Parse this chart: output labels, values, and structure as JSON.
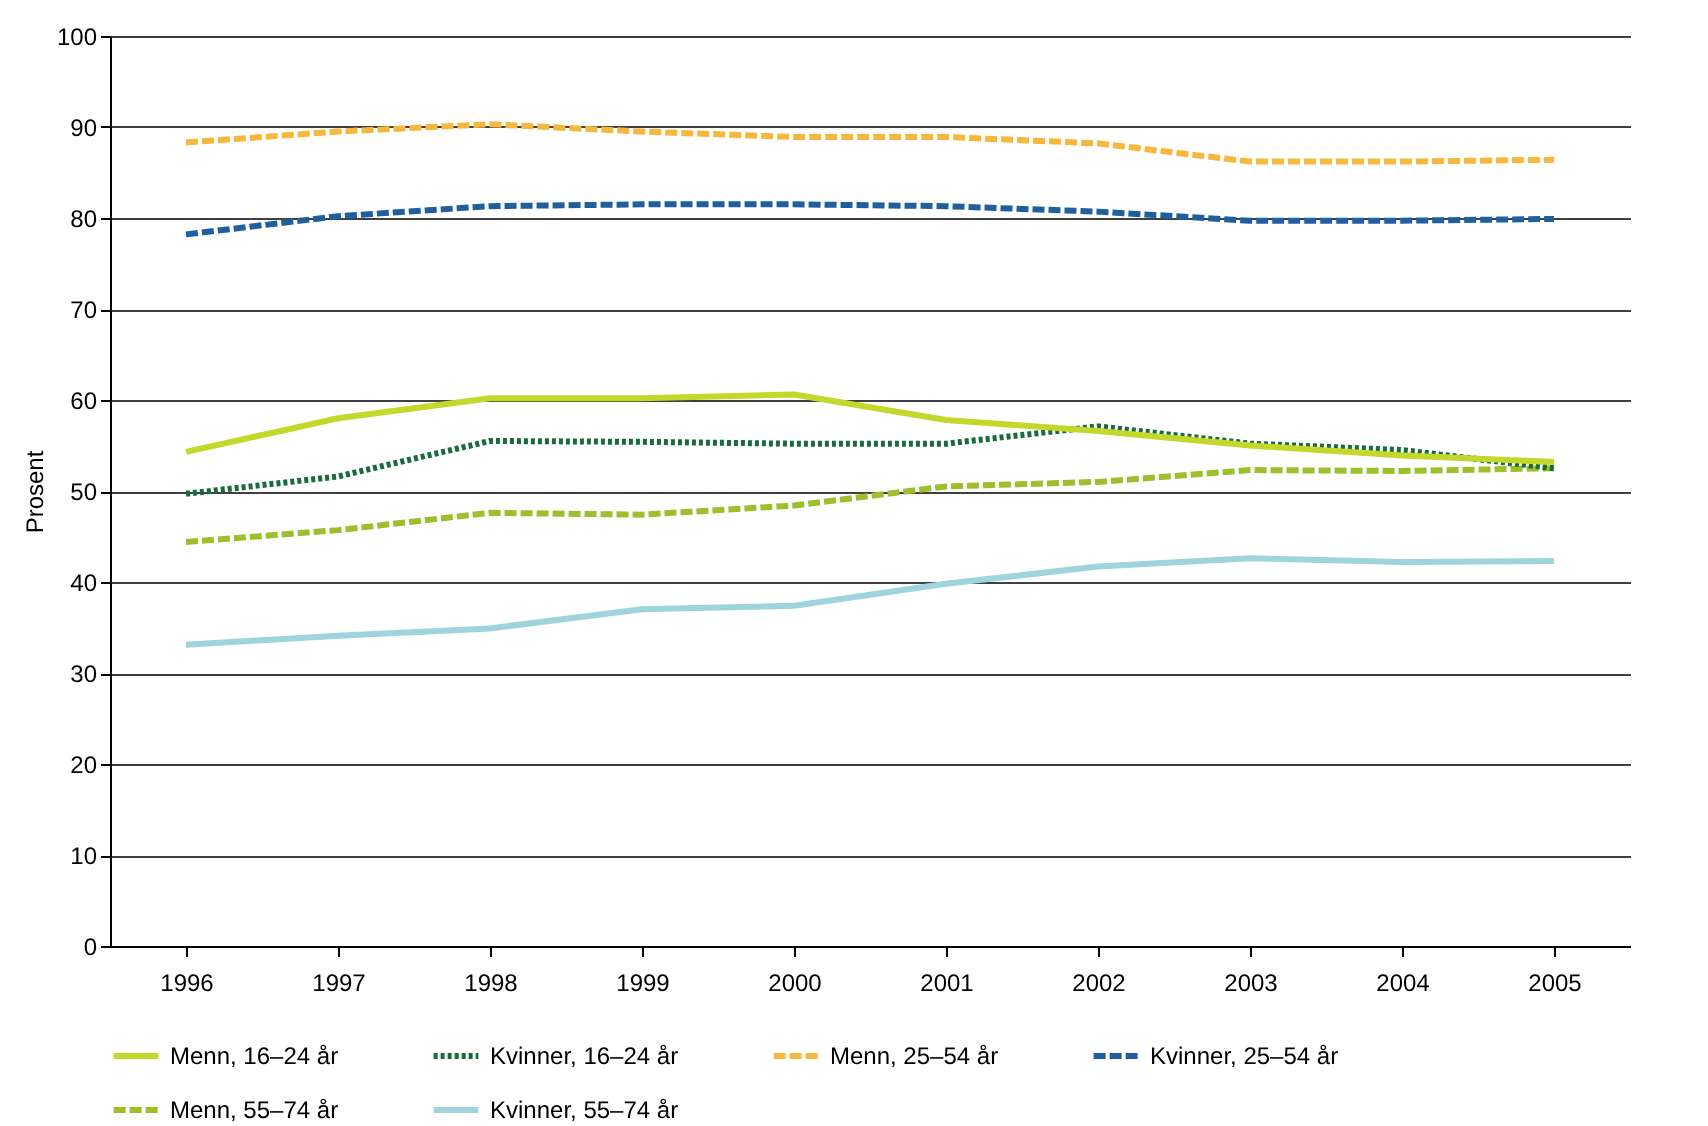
{
  "chart_data": {
    "type": "line",
    "ylabel": "Prosent",
    "categories": [
      "1996",
      "1997",
      "1998",
      "1999",
      "2000",
      "2001",
      "2002",
      "2003",
      "2004",
      "2005"
    ],
    "series": [
      {
        "name": "Menn, 16–24 år",
        "color": "#c3d82a",
        "line_style": "solid",
        "values": [
          54.3,
          58.0,
          60.2,
          60.2,
          60.6,
          57.8,
          56.6,
          55.0,
          53.9,
          53.2
        ]
      },
      {
        "name": "Kvinner, 16–24 år",
        "color": "#1a6b3a",
        "line_style": "dotted",
        "values": [
          49.7,
          51.6,
          55.5,
          55.4,
          55.2,
          55.2,
          57.1,
          55.2,
          54.5,
          52.5
        ]
      },
      {
        "name": "Menn, 25–54 år",
        "color": "#f6b73c",
        "line_style": "dashed",
        "values": [
          88.3,
          89.5,
          90.3,
          89.5,
          88.9,
          88.9,
          88.2,
          86.2,
          86.2,
          86.4
        ]
      },
      {
        "name": "Kvinner, 25–54 år",
        "color": "#1f5f9c",
        "line_style": "dashed",
        "values": [
          78.2,
          80.2,
          81.3,
          81.5,
          81.5,
          81.3,
          80.7,
          79.7,
          79.7,
          79.9
        ]
      },
      {
        "name": "Menn, 55–74 år",
        "color": "#9cbf2b",
        "line_style": "dashed",
        "values": [
          44.4,
          45.7,
          47.6,
          47.4,
          48.4,
          50.5,
          51.0,
          52.3,
          52.2,
          52.5
        ]
      },
      {
        "name": "Kvinner, 55–74 år",
        "color": "#9fd3dd",
        "line_style": "solid",
        "values": [
          33.1,
          34.1,
          34.9,
          37.0,
          37.4,
          39.8,
          41.7,
          42.6,
          42.2,
          42.3
        ]
      }
    ],
    "ylim": [
      0,
      100
    ],
    "yticks": [
      0,
      10,
      20,
      30,
      40,
      50,
      60,
      70,
      80,
      90,
      100
    ],
    "grid": "y",
    "legend": "bottom",
    "marker": "none"
  }
}
